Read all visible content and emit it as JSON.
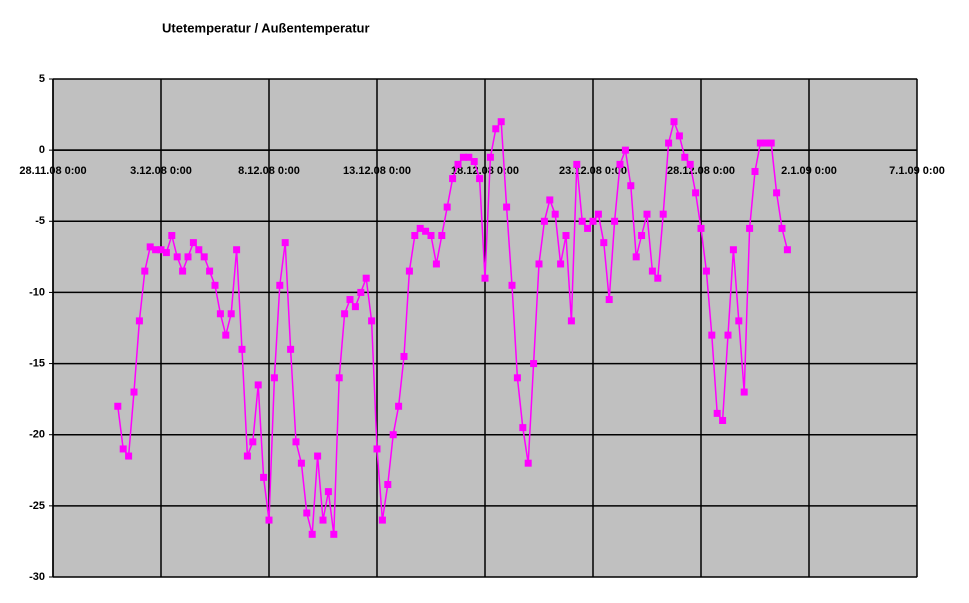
{
  "chart_data": {
    "type": "line",
    "title": "Utetemperatur / Außentemperatur",
    "x": [
      "1.12.08 0:00",
      "1.12.08 6:00",
      "1.12.08 12:00",
      "1.12.08 18:00",
      "2.12.08 0:00",
      "2.12.08 6:00",
      "2.12.08 12:00",
      "2.12.08 18:00",
      "3.12.08 0:00",
      "3.12.08 6:00",
      "3.12.08 12:00",
      "3.12.08 18:00",
      "4.12.08 0:00",
      "4.12.08 6:00",
      "4.12.08 12:00",
      "4.12.08 18:00",
      "5.12.08 0:00",
      "5.12.08 6:00",
      "5.12.08 12:00",
      "5.12.08 18:00",
      "6.12.08 0:00",
      "6.12.08 6:00",
      "6.12.08 12:00",
      "6.12.08 18:00",
      "7.12.08 0:00",
      "7.12.08 6:00",
      "7.12.08 12:00",
      "7.12.08 18:00",
      "8.12.08 0:00",
      "8.12.08 6:00",
      "8.12.08 12:00",
      "8.12.08 18:00",
      "9.12.08 0:00",
      "9.12.08 6:00",
      "9.12.08 12:00",
      "9.12.08 18:00",
      "10.12.08 0:00",
      "10.12.08 6:00",
      "10.12.08 12:00",
      "10.12.08 18:00",
      "11.12.08 0:00",
      "11.12.08 6:00",
      "11.12.08 12:00",
      "11.12.08 18:00",
      "12.12.08 0:00",
      "12.12.08 6:00",
      "12.12.08 12:00",
      "12.12.08 18:00",
      "13.12.08 0:00",
      "13.12.08 6:00",
      "13.12.08 12:00",
      "13.12.08 18:00",
      "14.12.08 0:00",
      "14.12.08 6:00",
      "14.12.08 12:00",
      "14.12.08 18:00",
      "15.12.08 0:00",
      "15.12.08 6:00",
      "15.12.08 12:00",
      "15.12.08 18:00",
      "16.12.08 0:00",
      "16.12.08 6:00",
      "16.12.08 12:00",
      "16.12.08 18:00",
      "17.12.08 0:00",
      "17.12.08 6:00",
      "17.12.08 12:00",
      "17.12.08 18:00",
      "18.12.08 0:00",
      "18.12.08 6:00",
      "18.12.08 12:00",
      "18.12.08 18:00",
      "19.12.08 0:00",
      "19.12.08 6:00",
      "19.12.08 12:00",
      "19.12.08 18:00",
      "20.12.08 0:00",
      "20.12.08 6:00",
      "20.12.08 12:00",
      "20.12.08 18:00",
      "21.12.08 0:00",
      "21.12.08 6:00",
      "21.12.08 12:00",
      "21.12.08 18:00",
      "22.12.08 0:00",
      "22.12.08 6:00",
      "22.12.08 12:00",
      "22.12.08 18:00",
      "23.12.08 0:00",
      "23.12.08 6:00",
      "23.12.08 12:00",
      "23.12.08 18:00",
      "24.12.08 0:00",
      "24.12.08 6:00",
      "24.12.08 12:00",
      "24.12.08 18:00",
      "25.12.08 0:00",
      "25.12.08 6:00",
      "25.12.08 12:00",
      "25.12.08 18:00",
      "26.12.08 0:00",
      "26.12.08 6:00",
      "26.12.08 12:00",
      "26.12.08 18:00",
      "27.12.08 0:00",
      "27.12.08 6:00",
      "27.12.08 12:00",
      "27.12.08 18:00",
      "28.12.08 0:00",
      "28.12.08 6:00",
      "28.12.08 12:00",
      "28.12.08 18:00",
      "29.12.08 0:00",
      "29.12.08 6:00",
      "29.12.08 12:00",
      "29.12.08 18:00",
      "30.12.08 0:00",
      "30.12.08 6:00",
      "30.12.08 12:00",
      "30.12.08 18:00",
      "31.12.08 0:00",
      "31.12.08 6:00",
      "31.12.08 12:00",
      "31.12.08 18:00",
      "1.1.09 0:00"
    ],
    "series": [
      {
        "color": "#ff00ff",
        "values": [
          -18,
          -21,
          -21.5,
          -17,
          -12,
          -8.5,
          -6.8,
          -7,
          -7,
          -7.2,
          -6,
          -7.5,
          -8.5,
          -7.5,
          -6.5,
          -7,
          -7.5,
          -8.5,
          -9.5,
          -11.5,
          -13,
          -11.5,
          -7,
          -14,
          -21.5,
          -20.5,
          -16.5,
          -23,
          -26,
          -16,
          -9.5,
          -6.5,
          -14,
          -20.5,
          -22,
          -25.5,
          -27,
          -21.5,
          -26,
          -24,
          -27,
          -16,
          -11.5,
          -10.5,
          -11,
          -10,
          -9,
          -12,
          -21,
          -26,
          -23.5,
          -20,
          -18,
          -14.5,
          -8.5,
          -6,
          -5.5,
          -5.7,
          -6,
          -8,
          -6,
          -4,
          -2,
          -1,
          -0.5,
          -0.5,
          -0.8,
          -2,
          -9,
          -0.5,
          1.5,
          2,
          -4,
          -9.5,
          -16,
          -19.5,
          -22,
          -15,
          -8,
          -5,
          -3.5,
          -4.5,
          -8,
          -6,
          -12,
          -1,
          -5,
          -5.5,
          -5,
          -4.5,
          -6.5,
          -10.5,
          -5,
          -1,
          0,
          -2.5,
          -7.5,
          -6,
          -4.5,
          -8.5,
          -9,
          -4.5,
          0.5,
          2,
          1,
          -0.5,
          -1,
          -3,
          -5.5,
          -8.5,
          -13,
          -18.5,
          -19,
          -13,
          -7,
          -12,
          -17,
          -5.5,
          -1.5,
          0.5,
          0.5,
          0.5,
          -3,
          -5.5,
          -7
        ]
      }
    ],
    "xlim": [
      "28.11.08 0:00",
      "7.1.09 0:00"
    ],
    "xticks": [
      "28.11.08 0:00",
      "3.12.08 0:00",
      "8.12.08 0:00",
      "13.12.08 0:00",
      "18.12.08 0:00",
      "23.12.08 0:00",
      "28.12.08 0:00",
      "2.1.09 0:00",
      "7.1.09 0:00"
    ],
    "ylim": [
      -30,
      5
    ],
    "yticks": [
      5,
      0,
      -5,
      -10,
      -15,
      -20,
      -25,
      -30
    ],
    "grid": true
  }
}
